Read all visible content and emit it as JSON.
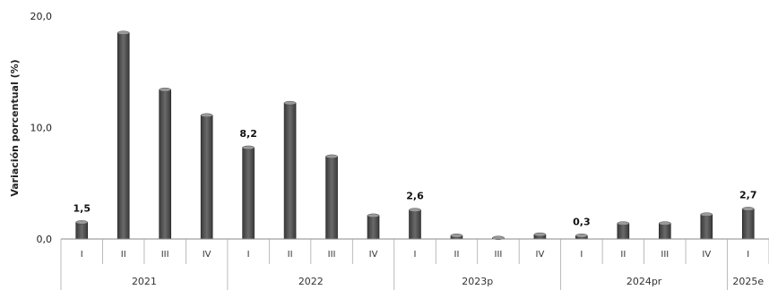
{
  "chart_data": {
    "type": "bar",
    "ylabel": "Variación porcentual (%)",
    "xlabel": "",
    "ylim": [
      0,
      20
    ],
    "yticks": [
      "0,0",
      "10,0",
      "20,0"
    ],
    "ytick_values": [
      0,
      10,
      20
    ],
    "grid": false,
    "bar_color": "#555555",
    "categories": [
      "I",
      "II",
      "III",
      "IV",
      "I",
      "II",
      "III",
      "IV",
      "I",
      "II",
      "III",
      "IV",
      "I",
      "II",
      "III",
      "IV",
      "I"
    ],
    "years": [
      "2021",
      "2022",
      "2023p",
      "2024pr",
      "2025e"
    ],
    "year_spans": [
      4,
      4,
      4,
      4,
      1
    ],
    "values": [
      1.5,
      18.5,
      13.4,
      11.1,
      8.2,
      12.2,
      7.4,
      2.1,
      2.6,
      0.3,
      0.1,
      0.4,
      0.3,
      1.4,
      1.4,
      2.2,
      2.7
    ],
    "data_labels": [
      {
        "index": 0,
        "text": "1,5"
      },
      {
        "index": 4,
        "text": "8,2"
      },
      {
        "index": 8,
        "text": "2,6"
      },
      {
        "index": 12,
        "text": "0,3"
      },
      {
        "index": 16,
        "text": "2,7"
      }
    ]
  }
}
